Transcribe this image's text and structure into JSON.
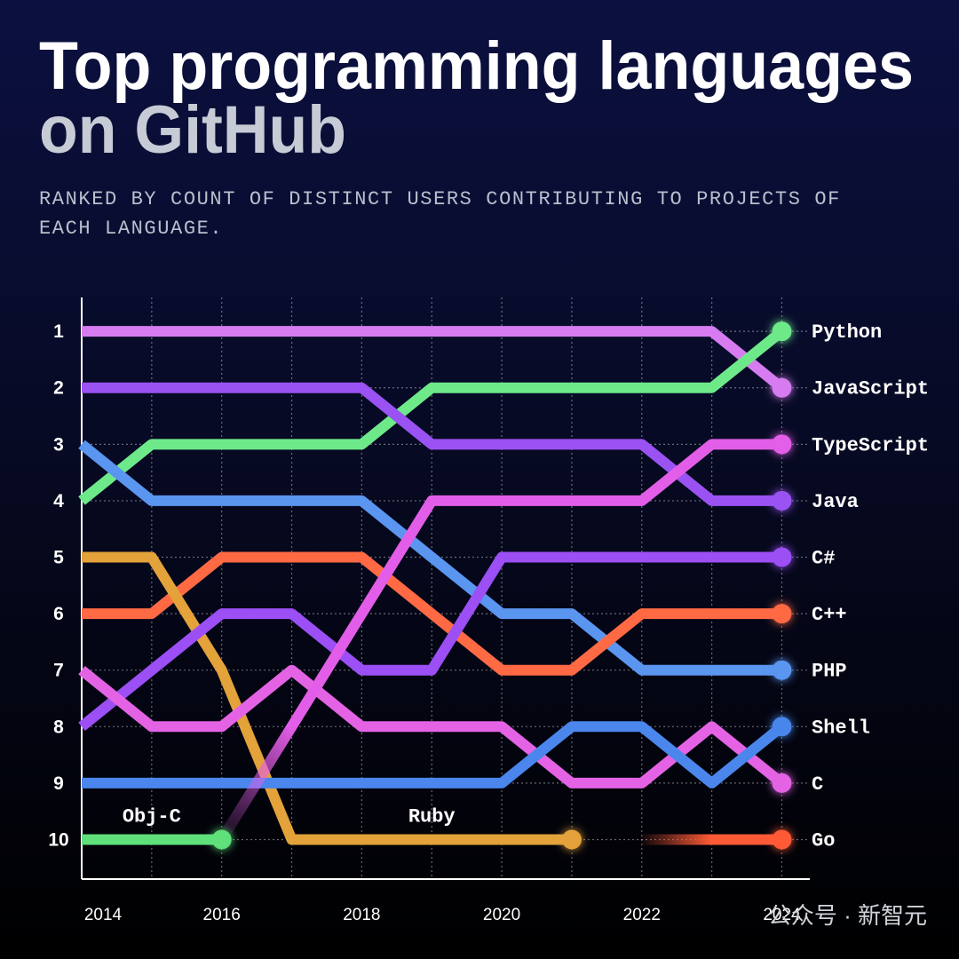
{
  "chart_data": {
    "type": "bump",
    "title": "Top programming languages",
    "title_line2": "on GitHub",
    "subtitle": "RANKED BY COUNT OF DISTINCT USERS CONTRIBUTING TO PROJECTS OF EACH LANGUAGE.",
    "watermark": "公众号 · 新智元",
    "x": [
      2014,
      2015,
      2016,
      2017,
      2018,
      2019,
      2020,
      2021,
      2022,
      2023,
      2024
    ],
    "xlim": [
      2014,
      2024.4
    ],
    "xticks": [
      2014,
      2016,
      2018,
      2020,
      2022,
      2024
    ],
    "xminor": [
      2015,
      2017,
      2019,
      2021,
      2023
    ],
    "ylim": [
      10.7,
      0.4
    ],
    "yticks": [
      1,
      2,
      3,
      4,
      5,
      6,
      7,
      8,
      9,
      10
    ],
    "grid": true,
    "series": [
      {
        "name": "JavaScript",
        "color": "#d77cf0",
        "values": [
          1,
          1,
          1,
          1,
          1,
          1,
          1,
          1,
          1,
          1,
          2
        ]
      },
      {
        "name": "Python",
        "color": "#6ee98a",
        "values": [
          4,
          3,
          3,
          3,
          3,
          2,
          2,
          2,
          2,
          2,
          1
        ]
      },
      {
        "name": "Java",
        "color": "#9a52f2",
        "values": [
          2,
          2,
          2,
          2,
          2,
          3,
          3,
          3,
          3,
          4,
          4
        ]
      },
      {
        "name": "PHP",
        "color": "#5a95f0",
        "values": [
          3,
          4,
          4,
          4,
          4,
          5,
          6,
          6,
          7,
          7,
          7
        ]
      },
      {
        "name": "C++",
        "color": "#ff6a44",
        "values": [
          6,
          6,
          5,
          5,
          5,
          6,
          7,
          7,
          6,
          6,
          6
        ]
      },
      {
        "name": "Ruby",
        "color": "#e3a23a",
        "values": [
          5,
          5,
          7,
          10,
          10,
          10,
          10,
          10,
          null,
          null,
          null
        ]
      },
      {
        "name": "C#",
        "color": "#9c4ff5",
        "values": [
          8,
          7,
          6,
          6,
          7,
          7,
          5,
          5,
          5,
          5,
          5
        ]
      },
      {
        "name": "C",
        "color": "#e463e4",
        "values": [
          7,
          8,
          8,
          7,
          8,
          8,
          8,
          9,
          9,
          8,
          9
        ]
      },
      {
        "name": "Shell",
        "color": "#4a86ec",
        "values": [
          9,
          9,
          9,
          9,
          9,
          9,
          9,
          8,
          8,
          9,
          8
        ]
      },
      {
        "name": "Obj-C",
        "color": "#5fe07a",
        "values": [
          10,
          10,
          10,
          null,
          null,
          null,
          null,
          null,
          null,
          null,
          null
        ]
      },
      {
        "name": "TypeScript",
        "color": "#e35ee8",
        "values": [
          null,
          null,
          10,
          8,
          6,
          4,
          4,
          4,
          4,
          3,
          3
        ]
      },
      {
        "name": "Go",
        "color": "#ff5a36",
        "values": [
          null,
          null,
          null,
          null,
          null,
          null,
          null,
          null,
          10,
          10,
          10
        ]
      }
    ]
  }
}
